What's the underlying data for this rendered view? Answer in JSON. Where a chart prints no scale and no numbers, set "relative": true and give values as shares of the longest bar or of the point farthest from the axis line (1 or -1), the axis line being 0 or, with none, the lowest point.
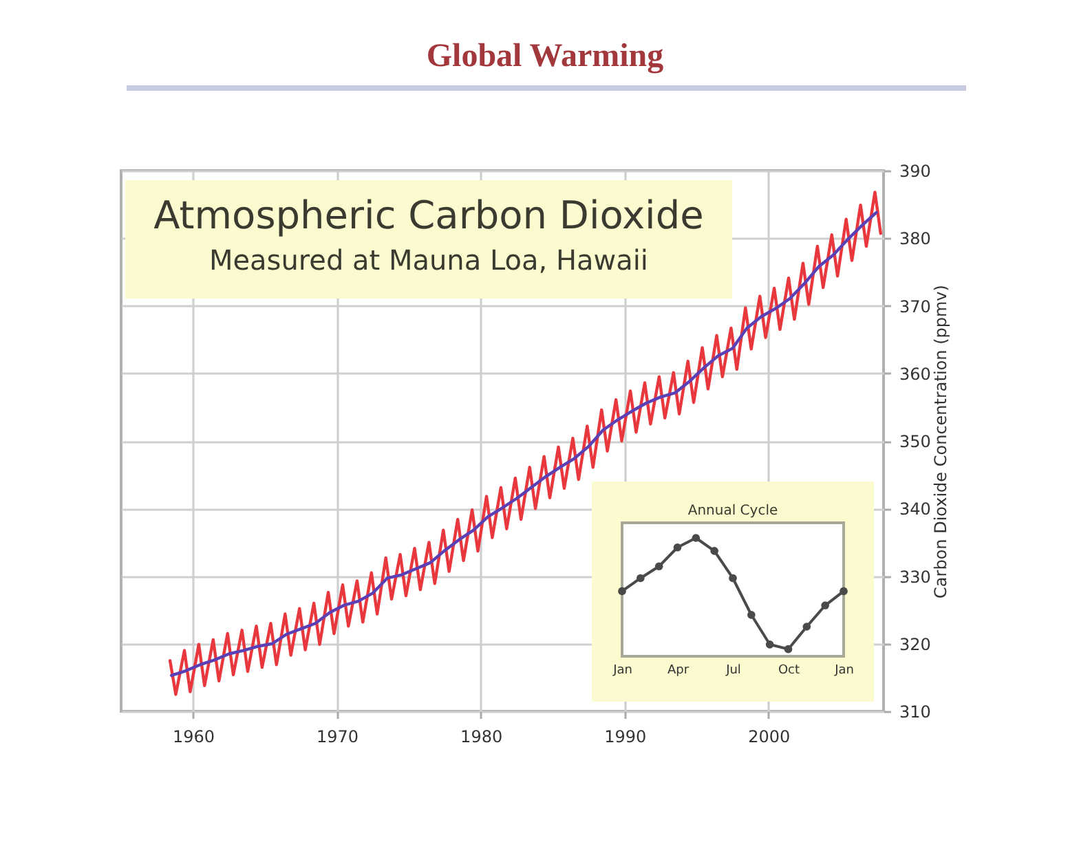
{
  "chart_data": [
    {
      "type": "line",
      "title": "Atmospheric Carbon Dioxide",
      "subtitle": "Measured at Mauna Loa, Hawaii",
      "ylabel": "Carbon Dioxide Concentration (ppmv)",
      "annotations": [
        "Global Warming"
      ],
      "xlim": [
        1955,
        2008
      ],
      "xticks": [
        1960,
        1970,
        1980,
        1990,
        2000
      ],
      "ylim": [
        310,
        390
      ],
      "yticks": [
        310,
        320,
        330,
        340,
        350,
        360,
        370,
        380,
        390
      ],
      "grid": true,
      "series": [
        {
          "color": "#e8383d",
          "x": [
            1958.4,
            1958.8,
            1959.4,
            1959.8,
            1960.4,
            1960.8,
            1961.4,
            1961.8,
            1962.4,
            1962.8,
            1963.4,
            1963.8,
            1964.4,
            1964.8,
            1965.4,
            1965.8,
            1966.4,
            1966.8,
            1967.4,
            1967.8,
            1968.4,
            1968.8,
            1969.4,
            1969.8,
            1970.4,
            1970.8,
            1971.4,
            1971.8,
            1972.4,
            1972.8,
            1973.4,
            1973.8,
            1974.4,
            1974.8,
            1975.4,
            1975.8,
            1976.4,
            1976.8,
            1977.4,
            1977.8,
            1978.4,
            1978.8,
            1979.4,
            1979.8,
            1980.4,
            1980.8,
            1981.4,
            1981.8,
            1982.4,
            1982.8,
            1983.4,
            1983.8,
            1984.4,
            1984.8,
            1985.4,
            1985.8,
            1986.4,
            1986.8,
            1987.4,
            1987.8,
            1988.4,
            1988.8,
            1989.4,
            1989.8,
            1990.4,
            1990.8,
            1991.4,
            1991.8,
            1992.4,
            1992.8,
            1993.4,
            1993.8,
            1994.4,
            1994.8,
            1995.4,
            1995.8,
            1996.4,
            1996.8,
            1997.4,
            1997.8,
            1998.4,
            1998.8,
            1999.4,
            1999.8,
            2000.4,
            2000.8,
            2001.4,
            2001.8,
            2002.4,
            2002.8,
            2003.4,
            2003.8,
            2004.4,
            2004.8,
            2005.4,
            2005.8,
            2006.4,
            2006.8,
            2007.4,
            2007.8
          ],
          "values": [
            317.5,
            312.5,
            319.0,
            312.9,
            319.9,
            313.8,
            320.6,
            314.5,
            321.5,
            315.4,
            322.0,
            315.9,
            322.6,
            316.5,
            323.0,
            316.9,
            324.4,
            318.3,
            325.2,
            319.1,
            326.0,
            319.9,
            327.6,
            321.5,
            328.7,
            322.6,
            329.3,
            323.2,
            330.5,
            324.4,
            332.7,
            326.6,
            333.2,
            327.1,
            334.1,
            328.0,
            335.0,
            328.9,
            336.8,
            330.7,
            338.4,
            332.3,
            339.8,
            333.7,
            341.8,
            335.7,
            343.1,
            337.0,
            344.5,
            338.4,
            346.1,
            340.0,
            347.7,
            341.6,
            349.1,
            343.0,
            350.4,
            344.3,
            352.2,
            346.1,
            354.6,
            348.5,
            356.1,
            350.0,
            357.4,
            351.3,
            358.6,
            352.5,
            359.5,
            353.4,
            360.1,
            354.0,
            361.8,
            355.7,
            363.8,
            357.7,
            365.6,
            359.5,
            366.7,
            360.6,
            369.7,
            363.6,
            371.4,
            365.3,
            372.6,
            366.5,
            374.1,
            368.0,
            376.3,
            370.2,
            378.8,
            372.7,
            380.5,
            374.4,
            382.8,
            376.7,
            384.9,
            378.8,
            386.8,
            380.7
          ]
        },
        {
          "color": "#5a3fb5",
          "x": [
            1958.5,
            1959.5,
            1960.5,
            1961.5,
            1962.5,
            1963.5,
            1964.5,
            1965.5,
            1966.5,
            1967.5,
            1968.5,
            1969.5,
            1970.5,
            1971.5,
            1972.5,
            1973.5,
            1974.5,
            1975.5,
            1976.5,
            1977.5,
            1978.5,
            1979.5,
            1980.5,
            1981.5,
            1982.5,
            1983.5,
            1984.5,
            1985.5,
            1986.5,
            1987.5,
            1988.5,
            1989.5,
            1990.5,
            1991.5,
            1992.5,
            1993.5,
            1994.5,
            1995.5,
            1996.5,
            1997.5,
            1998.5,
            1999.5,
            2000.5,
            2001.5,
            2002.5,
            2003.5,
            2004.5,
            2005.5,
            2006.5,
            2007.5
          ],
          "values": [
            315.3,
            316.0,
            316.9,
            317.6,
            318.5,
            319.0,
            319.6,
            320.0,
            321.4,
            322.2,
            323.0,
            324.6,
            325.7,
            326.3,
            327.5,
            329.7,
            330.2,
            331.1,
            332.0,
            333.8,
            335.4,
            336.8,
            338.8,
            340.1,
            341.5,
            343.1,
            344.7,
            346.1,
            347.4,
            349.2,
            351.6,
            353.1,
            354.4,
            355.6,
            356.5,
            357.1,
            358.8,
            360.8,
            362.6,
            363.7,
            366.7,
            368.4,
            369.6,
            371.1,
            373.3,
            375.8,
            377.5,
            379.8,
            381.9,
            383.8
          ]
        }
      ]
    },
    {
      "type": "line",
      "title": "Annual Cycle",
      "relative": true,
      "marker": "circle",
      "color": "#4a4a4a",
      "categories": [
        "Jan",
        null,
        null,
        "Apr",
        null,
        null,
        "Jul",
        null,
        null,
        "Oct",
        null,
        null,
        "Jan"
      ],
      "values": [
        0.55,
        0.66,
        0.76,
        0.92,
        1,
        0.89,
        0.66,
        0.35,
        0.1,
        0.06,
        0.25,
        0.43,
        0.55
      ]
    }
  ]
}
